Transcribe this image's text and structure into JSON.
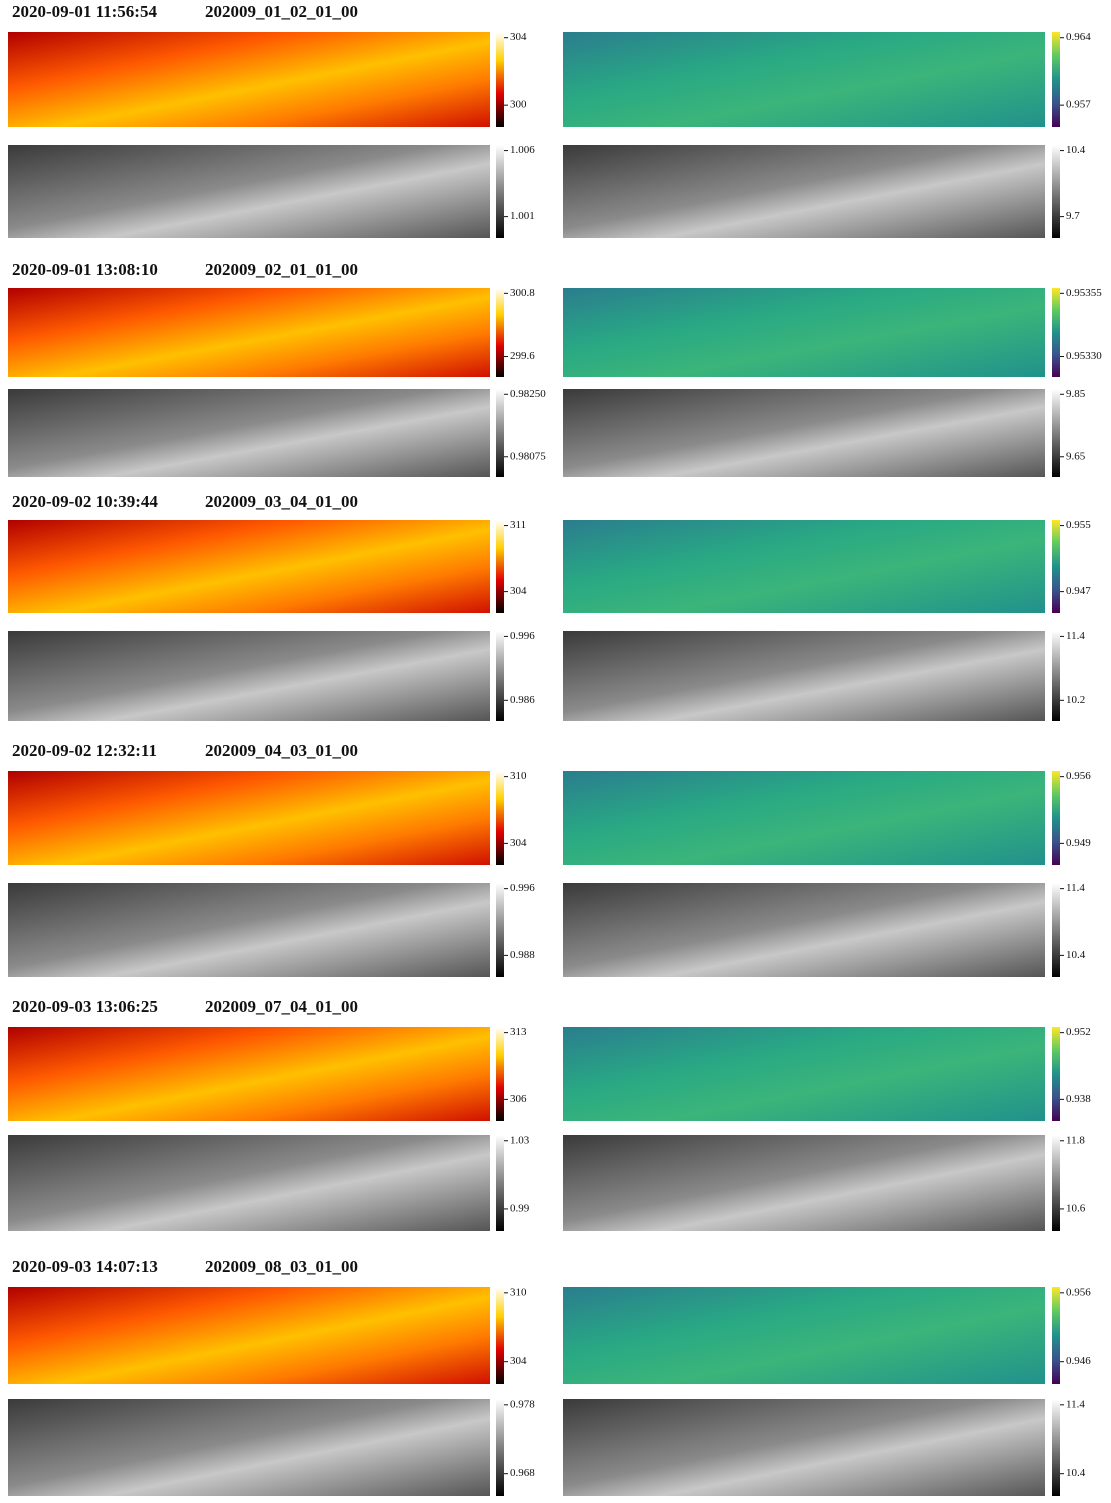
{
  "groups": [
    {
      "timestamp": "2020-09-01 11:56:54",
      "sequence": "202009_01_02_01_00",
      "panels": [
        {
          "colorbar_ticks": [
            "304",
            "300"
          ]
        },
        {
          "colorbar_ticks": [
            "0.964",
            "0.957"
          ]
        },
        {
          "colorbar_ticks": [
            "1.006",
            "1.001"
          ]
        },
        {
          "colorbar_ticks": [
            "10.4",
            "9.7"
          ]
        }
      ]
    },
    {
      "timestamp": "2020-09-01 13:08:10",
      "sequence": "202009_02_01_01_00",
      "panels": [
        {
          "colorbar_ticks": [
            "300.8",
            "299.6"
          ]
        },
        {
          "colorbar_ticks": [
            "0.95355",
            "0.95330"
          ]
        },
        {
          "colorbar_ticks": [
            "0.98250",
            "0.98075"
          ]
        },
        {
          "colorbar_ticks": [
            "9.85",
            "9.65"
          ]
        }
      ]
    },
    {
      "timestamp": "2020-09-02 10:39:44",
      "sequence": "202009_03_04_01_00",
      "panels": [
        {
          "colorbar_ticks": [
            "311",
            "304"
          ]
        },
        {
          "colorbar_ticks": [
            "0.955",
            "0.947"
          ]
        },
        {
          "colorbar_ticks": [
            "0.996",
            "0.986"
          ]
        },
        {
          "colorbar_ticks": [
            "11.4",
            "10.2"
          ]
        }
      ]
    },
    {
      "timestamp": "2020-09-02 12:32:11",
      "sequence": "202009_04_03_01_00",
      "panels": [
        {
          "colorbar_ticks": [
            "310",
            "304"
          ]
        },
        {
          "colorbar_ticks": [
            "0.956",
            "0.949"
          ]
        },
        {
          "colorbar_ticks": [
            "0.996",
            "0.988"
          ]
        },
        {
          "colorbar_ticks": [
            "11.4",
            "10.4"
          ]
        }
      ]
    },
    {
      "timestamp": "2020-09-03 13:06:25",
      "sequence": "202009_07_04_01_00",
      "panels": [
        {
          "colorbar_ticks": [
            "313",
            "306"
          ]
        },
        {
          "colorbar_ticks": [
            "0.952",
            "0.938"
          ]
        },
        {
          "colorbar_ticks": [
            "1.03",
            "0.99"
          ]
        },
        {
          "colorbar_ticks": [
            "11.8",
            "10.6"
          ]
        }
      ]
    },
    {
      "timestamp": "2020-09-03 14:07:13",
      "sequence": "202009_08_03_01_00",
      "panels": [
        {
          "colorbar_ticks": [
            "310",
            "304"
          ]
        },
        {
          "colorbar_ticks": [
            "0.956",
            "0.946"
          ]
        },
        {
          "colorbar_ticks": [
            "0.978",
            "0.968"
          ]
        },
        {
          "colorbar_ticks": [
            "11.4",
            "10.4"
          ]
        }
      ]
    }
  ]
}
